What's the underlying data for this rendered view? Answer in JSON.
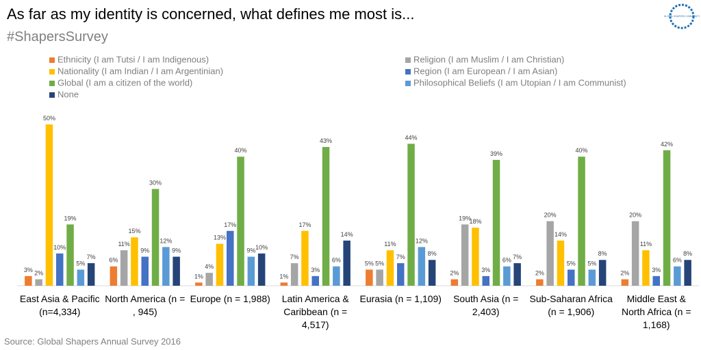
{
  "chart_data": {
    "type": "bar",
    "title": "As far as my identity is concerned, what defines me most is...",
    "subtitle": "#ShapersSurvey",
    "source": "Source: Global Shapers Annual Survey 2016",
    "logo": "GLOBAL SHAPERS COMMUNITY",
    "categories": [
      "East Asia & Pacific (n=4,334)",
      "North America (n = , 945)",
      "Europe (n = 1,988)",
      "Latin America & Caribbean (n = 4,517)",
      "Eurasia (n = 1,109)",
      "South Asia (n = 2,403)",
      "Sub-Saharan Africa (n = 1,906)",
      "Middle East & North Africa (n = 1,168)"
    ],
    "series": [
      {
        "name": "Ethnicity (I am Tutsi / I am Indigenous)",
        "color": "#ed7d31",
        "values": [
          3,
          6,
          1,
          1,
          5,
          2,
          2,
          2
        ],
        "value_labels": [
          "3%",
          "6%",
          "1%",
          "1%",
          "5%",
          "2%",
          "2%",
          "2%"
        ]
      },
      {
        "name": "Religion (I am Muslim / I am Christian)",
        "color": "#a5a5a5",
        "values": [
          2,
          11,
          4,
          7,
          5,
          19,
          20,
          20
        ],
        "value_labels": [
          "2%",
          "11%",
          "4%",
          "7%",
          "5%",
          "19%",
          "20%",
          "20%"
        ]
      },
      {
        "name": "Nationality (I am Indian / I am Argentinian)",
        "color": "#ffc000",
        "values": [
          50,
          15,
          13,
          17,
          11,
          18,
          14,
          11
        ],
        "value_labels": [
          "50%",
          "15%",
          "13%",
          "17%",
          "11%",
          "18%",
          "14%",
          "11%"
        ]
      },
      {
        "name": "Region (I am European / I am Asian)",
        "color": "#4472c4",
        "values": [
          10,
          9,
          17,
          3,
          7,
          3,
          5,
          3
        ],
        "value_labels": [
          "10%",
          "9%",
          "17%",
          "3%",
          "7%",
          "3%",
          "5%",
          "3%"
        ]
      },
      {
        "name": "Global (I am a citizen of the world)",
        "color": "#70ad47",
        "values": [
          19,
          30,
          40,
          43,
          44,
          39,
          40,
          42
        ],
        "value_labels": [
          "19%",
          "30%",
          "40%",
          "43%",
          "44%",
          "39%",
          "40%",
          "42%"
        ]
      },
      {
        "name": "Philosophical Beliefs (I am Utopian / I am Communist)",
        "color": "#5b9bd5",
        "values": [
          5,
          12,
          9,
          6,
          12,
          6,
          5,
          6
        ],
        "value_labels": [
          "5%",
          "12%",
          "9%",
          "6%",
          "12%",
          "6%",
          "5%",
          "6%"
        ]
      },
      {
        "name": "None",
        "color": "#264478",
        "values": [
          7,
          9,
          10,
          14,
          8,
          7,
          8,
          8
        ],
        "value_labels": [
          "7%",
          "9%",
          "10%",
          "14%",
          "8%",
          "7%",
          "8%",
          "8%"
        ]
      }
    ],
    "grid": false
  }
}
